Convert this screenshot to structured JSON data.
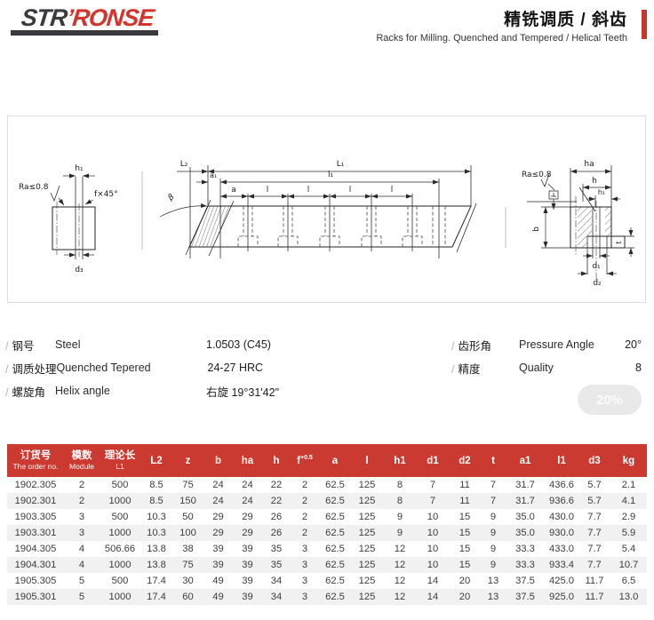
{
  "colors": {
    "accent_red": "#c9342b",
    "table_header_red": "#cb3a30",
    "logo_dark": "#3a3a3e",
    "logo_red": "#d2342e",
    "row_alt_gray": "#f1f1f2"
  },
  "header": {
    "logo_part1": "STR",
    "logo_part2": "’RONSE",
    "title_zh": "精铣调质 / 斜齿",
    "title_en": "Racks for Milling. Quenched and Tempered / Helical Teeth"
  },
  "drawing": {
    "left_view": {
      "h1": "h₁",
      "ra": "Ra≤0.8",
      "chamfer": "f×45°",
      "d3": "d₃"
    },
    "plan_view": {
      "L2": "L₂",
      "L1": "L₁",
      "l1": "l₁",
      "a1": "a₁",
      "a": "a",
      "l": "l",
      "beta": "β"
    },
    "end_view": {
      "ra": "Ra≤0.8",
      "ha": "ha",
      "h": "h",
      "h1": "h₁",
      "b": "b",
      "t": "t",
      "d1": "d₁",
      "d2": "d₂"
    }
  },
  "specs": {
    "left": [
      {
        "slash": "/",
        "label_zh": "钢号",
        "label_en": "Steel",
        "value": "1.0503 (C45)"
      },
      {
        "slash": "/",
        "label_zh": "调质处理",
        "label_en": "Quenched Tepered",
        "value": "24-27 HRC"
      },
      {
        "slash": "/",
        "label_zh": "螺旋角",
        "label_en": "Helix angle",
        "value": "右旋 19°31'42\""
      }
    ],
    "right": [
      {
        "slash": "/",
        "label_zh": "齿形角",
        "label_en": "Pressure Angle",
        "value": "20°"
      },
      {
        "slash": "/",
        "label_zh": "精度",
        "label_en": "Quality",
        "value": "8"
      }
    ]
  },
  "watermark": {
    "label": "20%"
  },
  "table": {
    "headers": [
      {
        "zh": "订货号",
        "en": "The order no."
      },
      {
        "zh": "模数",
        "en": "Module"
      },
      {
        "zh": "理论长",
        "en": "L1"
      },
      {
        "label": "L2"
      },
      {
        "label": "z"
      },
      {
        "label": "b"
      },
      {
        "label": "ha"
      },
      {
        "label": "h"
      },
      {
        "label": "f",
        "sup": "+0.5"
      },
      {
        "label": "a"
      },
      {
        "label": "l"
      },
      {
        "label": "h1"
      },
      {
        "label": "d1"
      },
      {
        "label": "d2"
      },
      {
        "label": "t"
      },
      {
        "label": "a1"
      },
      {
        "label": "l1"
      },
      {
        "label": "d3"
      },
      {
        "label": "kg"
      }
    ],
    "rows": [
      [
        "1902.305",
        "2",
        "500",
        "8.5",
        "75",
        "24",
        "24",
        "22",
        "2",
        "62.5",
        "125",
        "8",
        "7",
        "11",
        "7",
        "31.7",
        "436.6",
        "5.7",
        "2.1"
      ],
      [
        "1902.301",
        "2",
        "1000",
        "8.5",
        "150",
        "24",
        "24",
        "22",
        "2",
        "62.5",
        "125",
        "8",
        "7",
        "11",
        "7",
        "31.7",
        "936.6",
        "5.7",
        "4.1"
      ],
      [
        "1903.305",
        "3",
        "500",
        "10.3",
        "50",
        "29",
        "29",
        "26",
        "2",
        "62.5",
        "125",
        "9",
        "10",
        "15",
        "9",
        "35.0",
        "430.0",
        "7.7",
        "2.9"
      ],
      [
        "1903.301",
        "3",
        "1000",
        "10.3",
        "100",
        "29",
        "29",
        "26",
        "2",
        "62.5",
        "125",
        "9",
        "10",
        "15",
        "9",
        "35.0",
        "930.0",
        "7.7",
        "5.9"
      ],
      [
        "1904.305",
        "4",
        "506.66",
        "13.8",
        "38",
        "39",
        "39",
        "35",
        "3",
        "62.5",
        "125",
        "12",
        "10",
        "15",
        "9",
        "33.3",
        "433.0",
        "7.7",
        "5.4"
      ],
      [
        "1904.301",
        "4",
        "1000",
        "13.8",
        "75",
        "39",
        "39",
        "35",
        "3",
        "62.5",
        "125",
        "12",
        "10",
        "15",
        "9",
        "33.3",
        "933.4",
        "7.7",
        "10.7"
      ],
      [
        "1905.305",
        "5",
        "500",
        "17.4",
        "30",
        "49",
        "39",
        "34",
        "3",
        "62.5",
        "125",
        "12",
        "14",
        "20",
        "13",
        "37.5",
        "425.0",
        "11.7",
        "6.5"
      ],
      [
        "1905.301",
        "5",
        "1000",
        "17.4",
        "60",
        "49",
        "39",
        "34",
        "3",
        "62.5",
        "125",
        "12",
        "14",
        "20",
        "13",
        "37.5",
        "925.0",
        "11.7",
        "13.0"
      ]
    ]
  }
}
